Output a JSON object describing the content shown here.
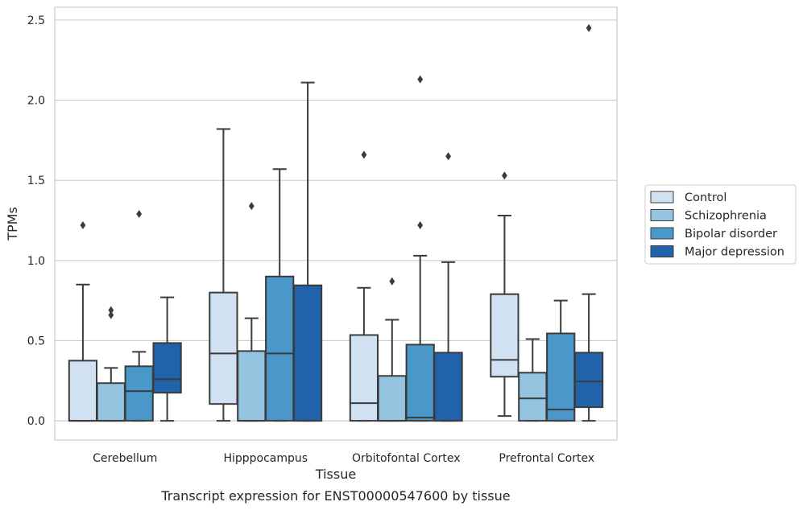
{
  "chart_data": {
    "type": "box",
    "title": "",
    "caption": "Transcript expression for ENST00000547600 by tissue",
    "xlabel": "Tissue",
    "ylabel": "TPMs",
    "ylim": [
      -0.12,
      2.58
    ],
    "yticks": [
      "0.0",
      "0.5",
      "1.0",
      "1.5",
      "2.0",
      "2.5"
    ],
    "grid": true,
    "legend_position": "right",
    "categories": [
      "Cerebellum",
      "Hipppocampus",
      "Orbitofontal Cortex",
      "Prefrontal Cortex"
    ],
    "series": [
      {
        "name": "Control",
        "color": "#d0e1f2",
        "boxes": [
          {
            "whislo": 0.0,
            "q1": 0.0,
            "med": 0.0,
            "q3": 0.375,
            "whishi": 0.85,
            "fliers": [
              1.22
            ]
          },
          {
            "whislo": 0.0,
            "q1": 0.105,
            "med": 0.42,
            "q3": 0.8,
            "whishi": 1.82,
            "fliers": []
          },
          {
            "whislo": 0.0,
            "q1": 0.0,
            "med": 0.11,
            "q3": 0.535,
            "whishi": 0.83,
            "fliers": [
              1.66
            ]
          },
          {
            "whislo": 0.03,
            "q1": 0.275,
            "med": 0.38,
            "q3": 0.79,
            "whishi": 1.28,
            "fliers": [
              1.53
            ]
          }
        ]
      },
      {
        "name": "Schizophrenia",
        "color": "#94c4df",
        "boxes": [
          {
            "whislo": 0.0,
            "q1": 0.0,
            "med": 0.0,
            "q3": 0.235,
            "whishi": 0.33,
            "fliers": [
              0.66,
              0.69
            ]
          },
          {
            "whislo": 0.0,
            "q1": 0.0,
            "med": 0.0,
            "q3": 0.435,
            "whishi": 0.64,
            "fliers": [
              1.34
            ]
          },
          {
            "whislo": 0.0,
            "q1": 0.0,
            "med": 0.0,
            "q3": 0.28,
            "whishi": 0.63,
            "fliers": [
              0.87
            ]
          },
          {
            "whislo": 0.0,
            "q1": 0.0,
            "med": 0.14,
            "q3": 0.3,
            "whishi": 0.51,
            "fliers": []
          }
        ]
      },
      {
        "name": "Bipolar disorder",
        "color": "#4a98c9",
        "boxes": [
          {
            "whislo": 0.0,
            "q1": 0.0,
            "med": 0.185,
            "q3": 0.34,
            "whishi": 0.43,
            "fliers": [
              1.29
            ]
          },
          {
            "whislo": 0.0,
            "q1": 0.0,
            "med": 0.42,
            "q3": 0.9,
            "whishi": 1.57,
            "fliers": []
          },
          {
            "whislo": 0.0,
            "q1": 0.0,
            "med": 0.02,
            "q3": 0.475,
            "whishi": 1.03,
            "fliers": [
              1.22,
              2.13
            ]
          },
          {
            "whislo": 0.0,
            "q1": 0.0,
            "med": 0.07,
            "q3": 0.545,
            "whishi": 0.75,
            "fliers": []
          }
        ]
      },
      {
        "name": "Major depression",
        "color": "#2163aa",
        "boxes": [
          {
            "whislo": 0.0,
            "q1": 0.175,
            "med": 0.26,
            "q3": 0.485,
            "whishi": 0.77,
            "fliers": []
          },
          {
            "whislo": 0.0,
            "q1": 0.0,
            "med": 0.0,
            "q3": 0.845,
            "whishi": 2.11,
            "fliers": []
          },
          {
            "whislo": 0.0,
            "q1": 0.0,
            "med": 0.0,
            "q3": 0.425,
            "whishi": 0.99,
            "fliers": [
              1.65
            ]
          },
          {
            "whislo": 0.0,
            "q1": 0.085,
            "med": 0.245,
            "q3": 0.425,
            "whishi": 0.79,
            "fliers": [
              2.45
            ]
          }
        ]
      }
    ]
  }
}
